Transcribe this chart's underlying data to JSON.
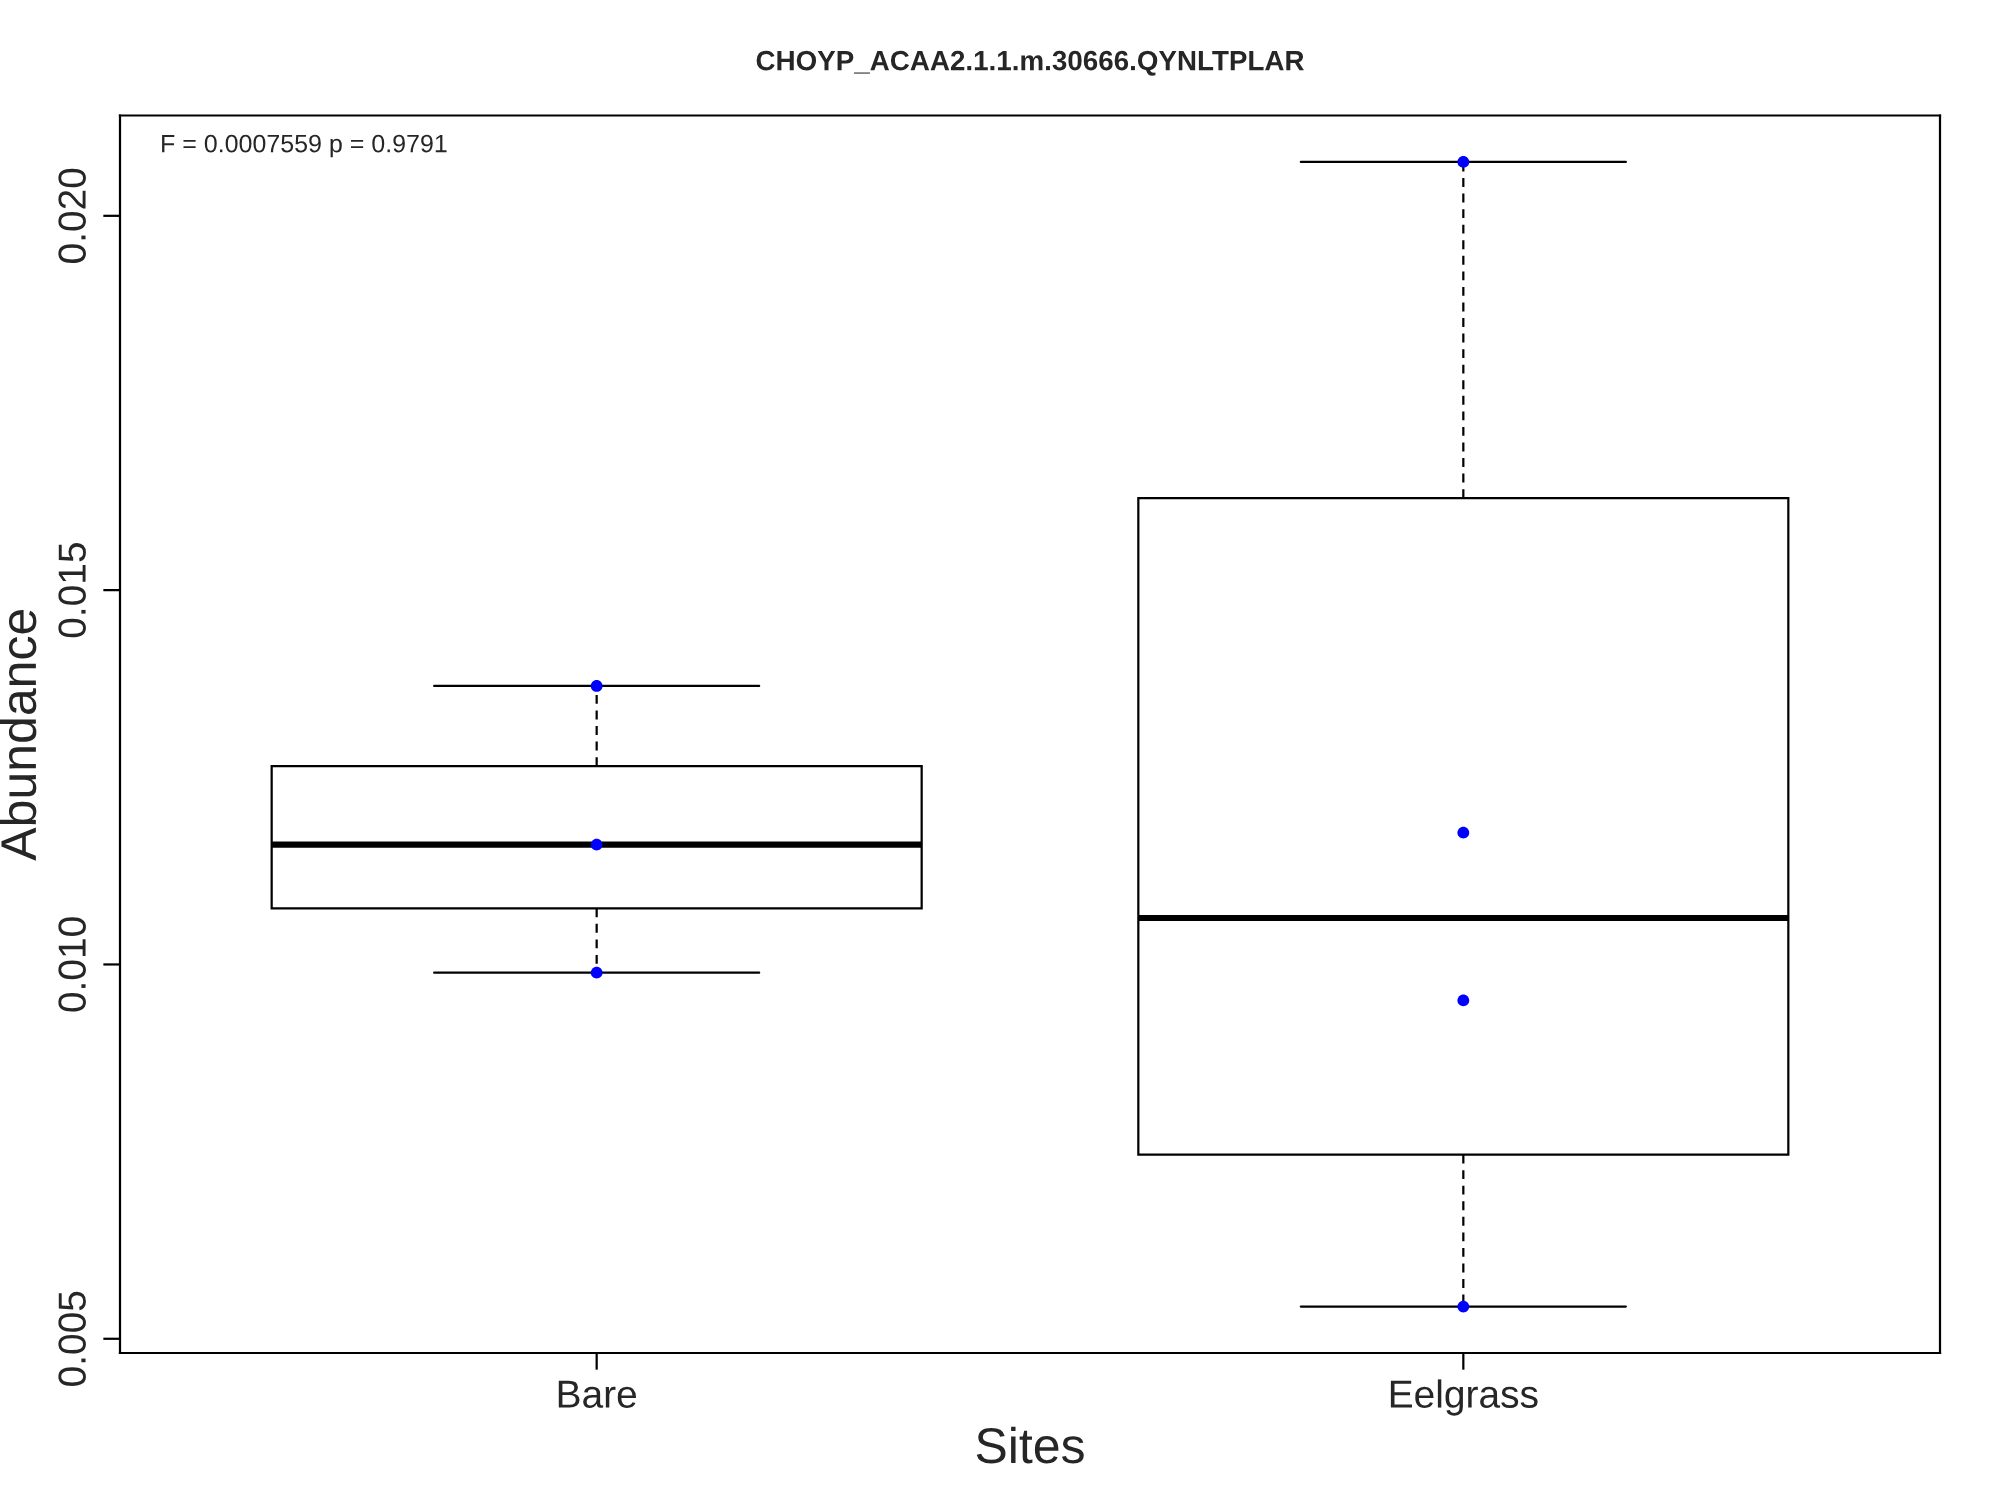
{
  "chart_data": {
    "type": "box",
    "title": "CHOYP_ACAA2.1.1.m.30666.QYNLTPLAR",
    "xlabel": "Sites",
    "ylabel": "Abundance",
    "categories": [
      "Bare",
      "Eelgrass"
    ],
    "boxes": [
      {
        "low": 0.00989,
        "q1": 0.01075,
        "median": 0.0116,
        "q3": 0.01265,
        "high": 0.01372
      },
      {
        "low": 0.00543,
        "q1": 0.00746,
        "median": 0.01062,
        "q3": 0.01623,
        "high": 0.02072
      }
    ],
    "series": [
      {
        "type": "scatter",
        "color": "#0000ff",
        "marker": "circle",
        "x": [
          "Bare",
          "Bare",
          "Bare",
          "Eelgrass",
          "Eelgrass",
          "Eelgrass",
          "Eelgrass"
        ],
        "values": [
          0.01372,
          0.0116,
          0.00989,
          0.02072,
          0.01176,
          0.00952,
          0.00543
        ]
      }
    ],
    "ylim": [
      0.00481,
      0.02134
    ],
    "yticks": [
      {
        "value": 0.005,
        "label": "0.005"
      },
      {
        "value": 0.01,
        "label": "0.010"
      },
      {
        "value": 0.015,
        "label": "0.015"
      },
      {
        "value": 0.02,
        "label": "0.020"
      }
    ],
    "annotations": [
      "F = 0.0007559 p = 0.9791"
    ],
    "grid": false
  }
}
